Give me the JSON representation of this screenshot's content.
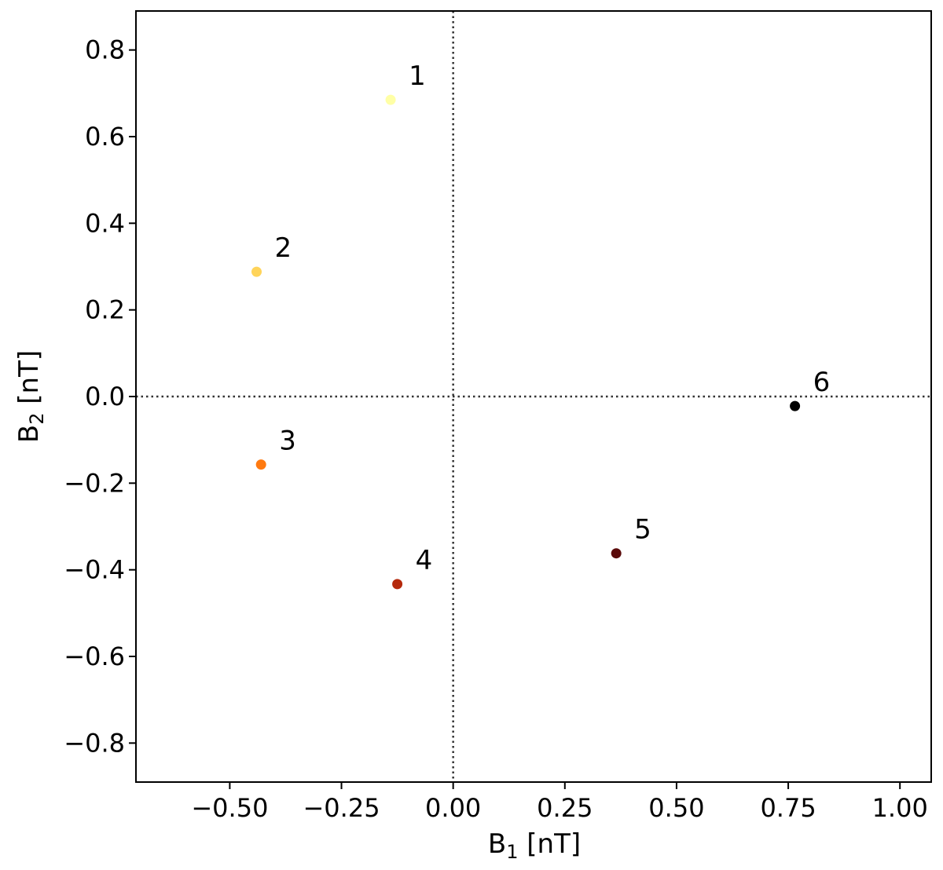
{
  "chart_data": {
    "type": "scatter",
    "xlabel": {
      "main": "B",
      "sub": "1",
      "unit": " [nT]"
    },
    "ylabel": {
      "main": "B",
      "sub": "2",
      "unit": " [nT]"
    },
    "xlim": [
      -0.71,
      1.07
    ],
    "ylim": [
      -0.89,
      0.89
    ],
    "xticks": [
      -0.5,
      -0.25,
      0.0,
      0.25,
      0.5,
      0.75,
      1.0
    ],
    "xtick_labels": [
      "−0.50",
      "−0.25",
      "0.00",
      "0.25",
      "0.50",
      "0.75",
      "1.00"
    ],
    "yticks": [
      0.8,
      0.6,
      0.4,
      0.2,
      0.0,
      -0.2,
      -0.4,
      -0.6,
      -0.8
    ],
    "ytick_labels": [
      "0.8",
      "0.6",
      "0.4",
      "0.2",
      "0.0",
      "−0.2",
      "−0.4",
      "−0.6",
      "−0.8"
    ],
    "grid": false,
    "reference_lines": {
      "x": 0.0,
      "y": 0.0,
      "style": "dotted"
    },
    "points": [
      {
        "label": "1",
        "x": -0.14,
        "y": 0.685,
        "color": "#ffffa6"
      },
      {
        "label": "2",
        "x": -0.44,
        "y": 0.288,
        "color": "#ffd45a"
      },
      {
        "label": "3",
        "x": -0.43,
        "y": -0.157,
        "color": "#ff7a10"
      },
      {
        "label": "4",
        "x": -0.125,
        "y": -0.433,
        "color": "#b5290c"
      },
      {
        "label": "5",
        "x": 0.365,
        "y": -0.362,
        "color": "#5a0a0a"
      },
      {
        "label": "6",
        "x": 0.765,
        "y": -0.022,
        "color": "#000000"
      }
    ]
  }
}
